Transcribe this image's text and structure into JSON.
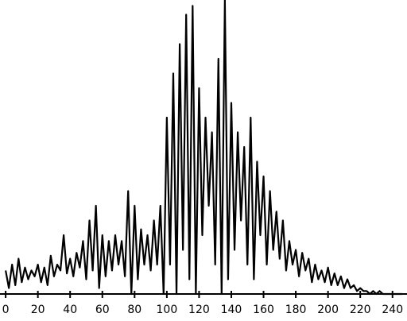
{
  "chart_data": {
    "type": "line",
    "x": [
      0,
      2,
      4,
      6,
      8,
      10,
      12,
      14,
      16,
      18,
      20,
      22,
      24,
      26,
      28,
      30,
      32,
      34,
      36,
      38,
      40,
      42,
      44,
      46,
      48,
      50,
      52,
      54,
      56,
      58,
      60,
      62,
      64,
      66,
      68,
      70,
      72,
      74,
      76,
      78,
      80,
      82,
      84,
      86,
      88,
      90,
      92,
      94,
      96,
      98,
      100,
      102,
      104,
      106,
      108,
      110,
      112,
      114,
      116,
      118,
      120,
      122,
      124,
      126,
      128,
      130,
      132,
      134,
      136,
      138,
      140,
      142,
      144,
      146,
      148,
      150,
      152,
      154,
      156,
      158,
      160,
      162,
      164,
      166,
      168,
      170,
      172,
      174,
      176,
      178,
      180,
      182,
      184,
      186,
      188,
      190,
      192,
      194,
      196,
      198,
      200,
      202,
      204,
      206,
      208,
      210,
      212,
      214,
      216,
      218,
      220,
      222,
      224,
      226,
      228,
      230,
      232,
      234,
      236,
      238,
      240,
      242,
      244,
      246
    ],
    "series": [
      {
        "color": "#000000",
        "values": [
          8,
          2,
          10,
          3,
          12,
          4,
          9,
          5,
          8,
          6,
          10,
          4,
          9,
          3,
          13,
          6,
          10,
          8,
          20,
          7,
          12,
          6,
          14,
          9,
          18,
          5,
          25,
          8,
          30,
          2,
          20,
          6,
          18,
          8,
          20,
          10,
          18,
          6,
          35,
          0,
          30,
          5,
          22,
          10,
          20,
          8,
          25,
          10,
          30,
          0,
          60,
          10,
          75,
          0,
          85,
          15,
          95,
          5,
          98,
          0,
          70,
          20,
          60,
          30,
          55,
          10,
          80,
          0,
          100,
          5,
          65,
          15,
          55,
          25,
          50,
          10,
          60,
          5,
          45,
          20,
          40,
          10,
          35,
          15,
          28,
          12,
          25,
          8,
          18,
          10,
          15,
          6,
          14,
          8,
          12,
          4,
          10,
          5,
          8,
          4,
          9,
          3,
          7,
          3,
          6,
          2,
          5,
          2,
          3,
          1,
          2,
          1,
          1,
          0,
          1,
          0,
          1,
          0,
          0,
          0,
          0,
          0,
          0,
          0
        ]
      }
    ],
    "xlim": [
      -3.5,
      249
    ],
    "ylim": [
      0,
      100
    ],
    "xticks": [
      0,
      20,
      40,
      60,
      80,
      100,
      120,
      140,
      160,
      180,
      200,
      220,
      240
    ]
  }
}
